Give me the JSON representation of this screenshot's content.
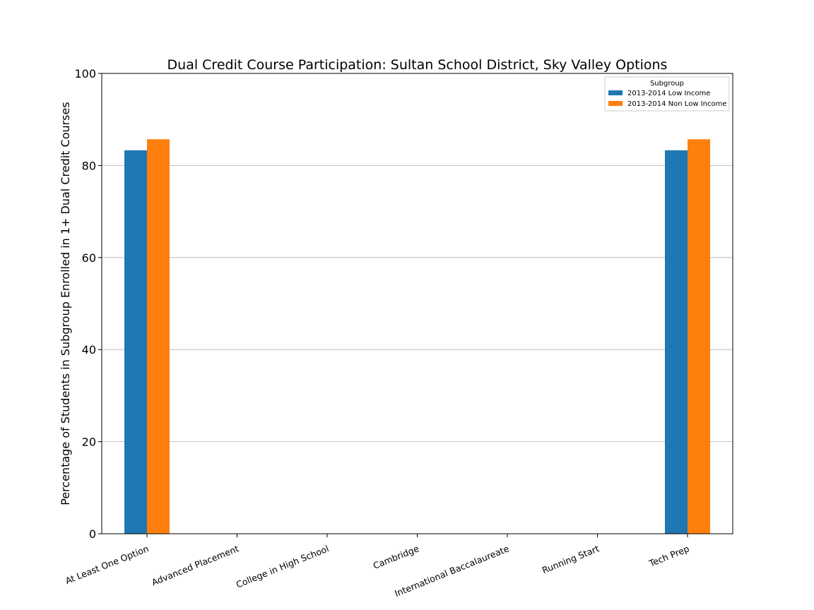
{
  "chart_data": {
    "type": "bar",
    "title": "Dual Credit Course Participation: Sultan School District, Sky Valley Options",
    "xlabel": "",
    "ylabel": "Percentage of Students in Subgroup Enrolled in 1+ Dual Credit Courses",
    "ylim": [
      0,
      100
    ],
    "yticks": [
      0,
      20,
      40,
      60,
      80,
      100
    ],
    "grid": "y",
    "categories": [
      "At Least One Option",
      "Advanced Placement",
      "College in High School",
      "Cambridge",
      "International Baccalaureate",
      "Running Start",
      "Tech Prep"
    ],
    "series": [
      {
        "name": "2013-2014 Low Income",
        "color": "#1f77b4",
        "values": [
          83.3,
          0,
          0,
          0,
          0,
          0,
          83.3
        ]
      },
      {
        "name": "2013-2014 Non Low Income",
        "color": "#ff7f0e",
        "values": [
          85.7,
          0,
          0,
          0,
          0,
          0,
          85.7
        ]
      }
    ],
    "legend": {
      "title": "Subgroup",
      "placement": "top-right"
    }
  }
}
